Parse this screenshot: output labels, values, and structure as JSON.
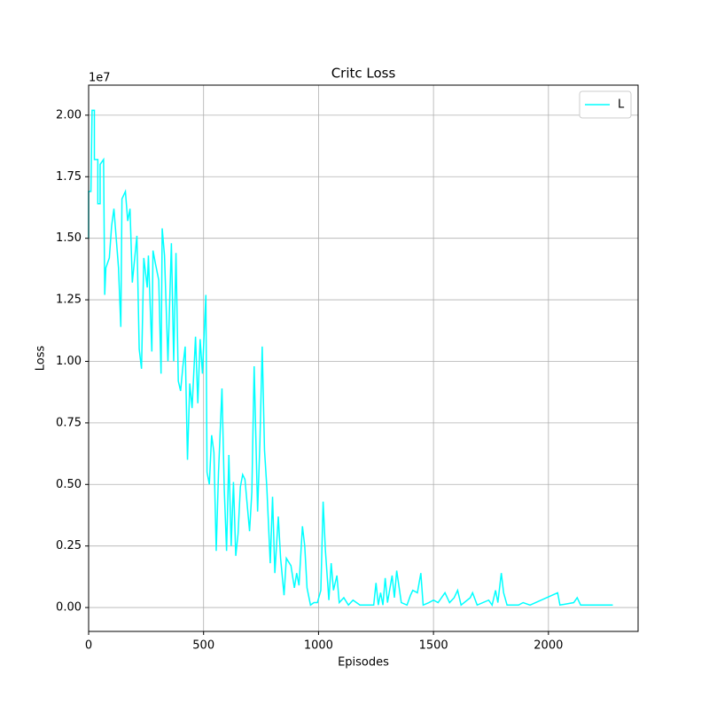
{
  "chart_data": {
    "type": "line",
    "title": "Critc Loss",
    "x_label": "Episodes",
    "y_label": "Loss",
    "y_offset_label": "1e7",
    "x": [
      0,
      0,
      10,
      15,
      25,
      25,
      40,
      40,
      50,
      50,
      65,
      70,
      75,
      90,
      100,
      110,
      115,
      130,
      140,
      145,
      160,
      170,
      180,
      190,
      210,
      220,
      230,
      240,
      255,
      260,
      275,
      280,
      290,
      305,
      315,
      320,
      330,
      345,
      360,
      370,
      380,
      390,
      400,
      410,
      420,
      430,
      440,
      450,
      465,
      475,
      485,
      495,
      510,
      515,
      525,
      535,
      545,
      555,
      565,
      580,
      590,
      600,
      610,
      620,
      630,
      640,
      650,
      660,
      670,
      680,
      700,
      710,
      720,
      735,
      745,
      755,
      765,
      775,
      790,
      800,
      810,
      825,
      835,
      850,
      860,
      880,
      895,
      905,
      915,
      930,
      940,
      950,
      965,
      980,
      995,
      1010,
      1020,
      1030,
      1045,
      1055,
      1065,
      1080,
      1090,
      1110,
      1130,
      1150,
      1180,
      1240,
      1250,
      1260,
      1270,
      1280,
      1290,
      1300,
      1320,
      1330,
      1340,
      1360,
      1385,
      1400,
      1410,
      1430,
      1445,
      1455,
      1480,
      1500,
      1520,
      1550,
      1570,
      1590,
      1605,
      1620,
      1660,
      1670,
      1690,
      1740,
      1755,
      1770,
      1780,
      1795,
      1805,
      1820,
      1870,
      1890,
      1920,
      2040,
      2050,
      2110,
      2125,
      2140,
      2280
    ],
    "series": [
      {
        "name": "L",
        "color": "#00ffff",
        "values": [
          1.5,
          1.69,
          1.69,
          2.02,
          2.02,
          1.82,
          1.82,
          1.64,
          1.64,
          1.8,
          1.82,
          1.27,
          1.38,
          1.42,
          1.55,
          1.62,
          1.56,
          1.38,
          1.14,
          1.66,
          1.69,
          1.57,
          1.62,
          1.32,
          1.51,
          1.05,
          0.97,
          1.42,
          1.3,
          1.43,
          1.04,
          1.45,
          1.4,
          1.33,
          0.95,
          1.54,
          1.43,
          1.0,
          1.48,
          1.0,
          1.44,
          0.92,
          0.88,
          0.98,
          1.06,
          0.6,
          0.91,
          0.81,
          1.1,
          0.83,
          1.09,
          0.95,
          1.27,
          0.55,
          0.5,
          0.7,
          0.63,
          0.23,
          0.55,
          0.89,
          0.48,
          0.23,
          0.62,
          0.25,
          0.51,
          0.21,
          0.3,
          0.49,
          0.54,
          0.52,
          0.31,
          0.47,
          0.98,
          0.39,
          0.67,
          1.06,
          0.64,
          0.49,
          0.18,
          0.45,
          0.14,
          0.37,
          0.2,
          0.05,
          0.2,
          0.17,
          0.08,
          0.14,
          0.09,
          0.33,
          0.25,
          0.08,
          0.01,
          0.02,
          0.02,
          0.07,
          0.43,
          0.23,
          0.03,
          0.18,
          0.07,
          0.13,
          0.02,
          0.04,
          0.01,
          0.03,
          0.01,
          0.01,
          0.1,
          0.01,
          0.06,
          0.01,
          0.12,
          0.02,
          0.13,
          0.04,
          0.15,
          0.02,
          0.01,
          0.05,
          0.07,
          0.06,
          0.14,
          0.01,
          0.02,
          0.03,
          0.02,
          0.06,
          0.02,
          0.04,
          0.07,
          0.01,
          0.04,
          0.06,
          0.01,
          0.03,
          0.01,
          0.07,
          0.02,
          0.14,
          0.06,
          0.01,
          0.01,
          0.02,
          0.01,
          0.06,
          0.01,
          0.02,
          0.04,
          0.01,
          0.01
        ]
      }
    ],
    "xlim": [
      0,
      2390
    ],
    "xticks": [
      0,
      500,
      1000,
      1500,
      2000
    ],
    "ylim": [
      -0.097,
      2.122
    ],
    "yticks": [
      {
        "value": 0,
        "label": "0.00"
      },
      {
        "value": 0.25,
        "label": "0.25"
      },
      {
        "value": 0.5,
        "label": "0.50"
      },
      {
        "value": 0.75,
        "label": "0.75"
      },
      {
        "value": 1,
        "label": "1.00"
      },
      {
        "value": 1.25,
        "label": "1.25"
      },
      {
        "value": 1.5,
        "label": "1.50"
      },
      {
        "value": 1.75,
        "label": "1.75"
      },
      {
        "value": 2,
        "label": "2.00"
      }
    ],
    "grid": true,
    "legend": "upper right"
  }
}
